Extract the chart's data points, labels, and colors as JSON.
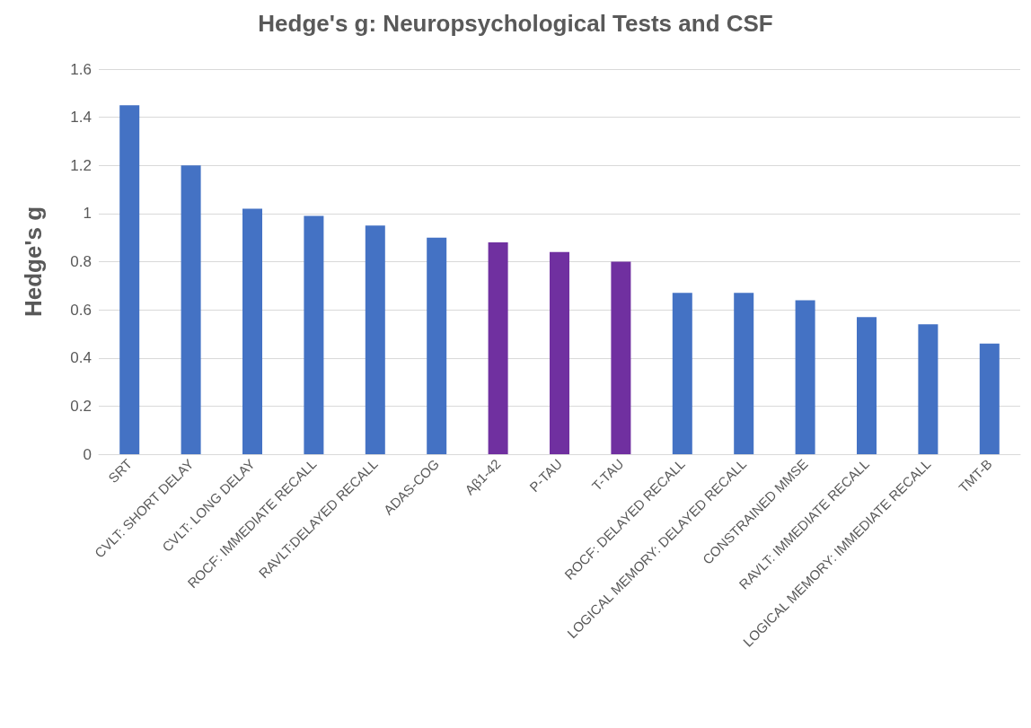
{
  "chart_data": {
    "type": "bar",
    "title": "Hedge's g: Neuropsychological Tests and CSF",
    "ylabel": "Hedge's g",
    "categories": [
      "SRT",
      "CVLT: SHORT DELAY",
      "CVLT: LONG DELAY",
      "ROCF: IMMEDIATE RECALL",
      "RAVLT:DELAYED RECALL",
      "ADAS-COG",
      "Aβ1-42",
      "P-TAU",
      "T-TAU",
      "ROCF: DELAYED RECALL",
      "LOGICAL MEMORY: DELAYED RECALL",
      "CONSTRAINED MMSE",
      "RAVLT: IMMEDIATE RECALL",
      "LOGICAL MEMORY: IMMEDIATE RECALL",
      "TMT-B"
    ],
    "values": [
      1.45,
      1.2,
      1.02,
      0.99,
      0.95,
      0.9,
      0.88,
      0.84,
      0.8,
      0.67,
      0.67,
      0.64,
      0.57,
      0.54,
      0.46
    ],
    "colors": [
      "#4472c4",
      "#4472c4",
      "#4472c4",
      "#4472c4",
      "#4472c4",
      "#4472c4",
      "#7030a0",
      "#7030a0",
      "#7030a0",
      "#4472c4",
      "#4472c4",
      "#4472c4",
      "#4472c4",
      "#4472c4",
      "#4472c4"
    ],
    "ylim": [
      0,
      1.6
    ],
    "yticks": [
      0,
      0.2,
      0.4,
      0.6,
      0.8,
      1,
      1.2,
      1.4,
      1.6
    ],
    "grid": "y"
  }
}
